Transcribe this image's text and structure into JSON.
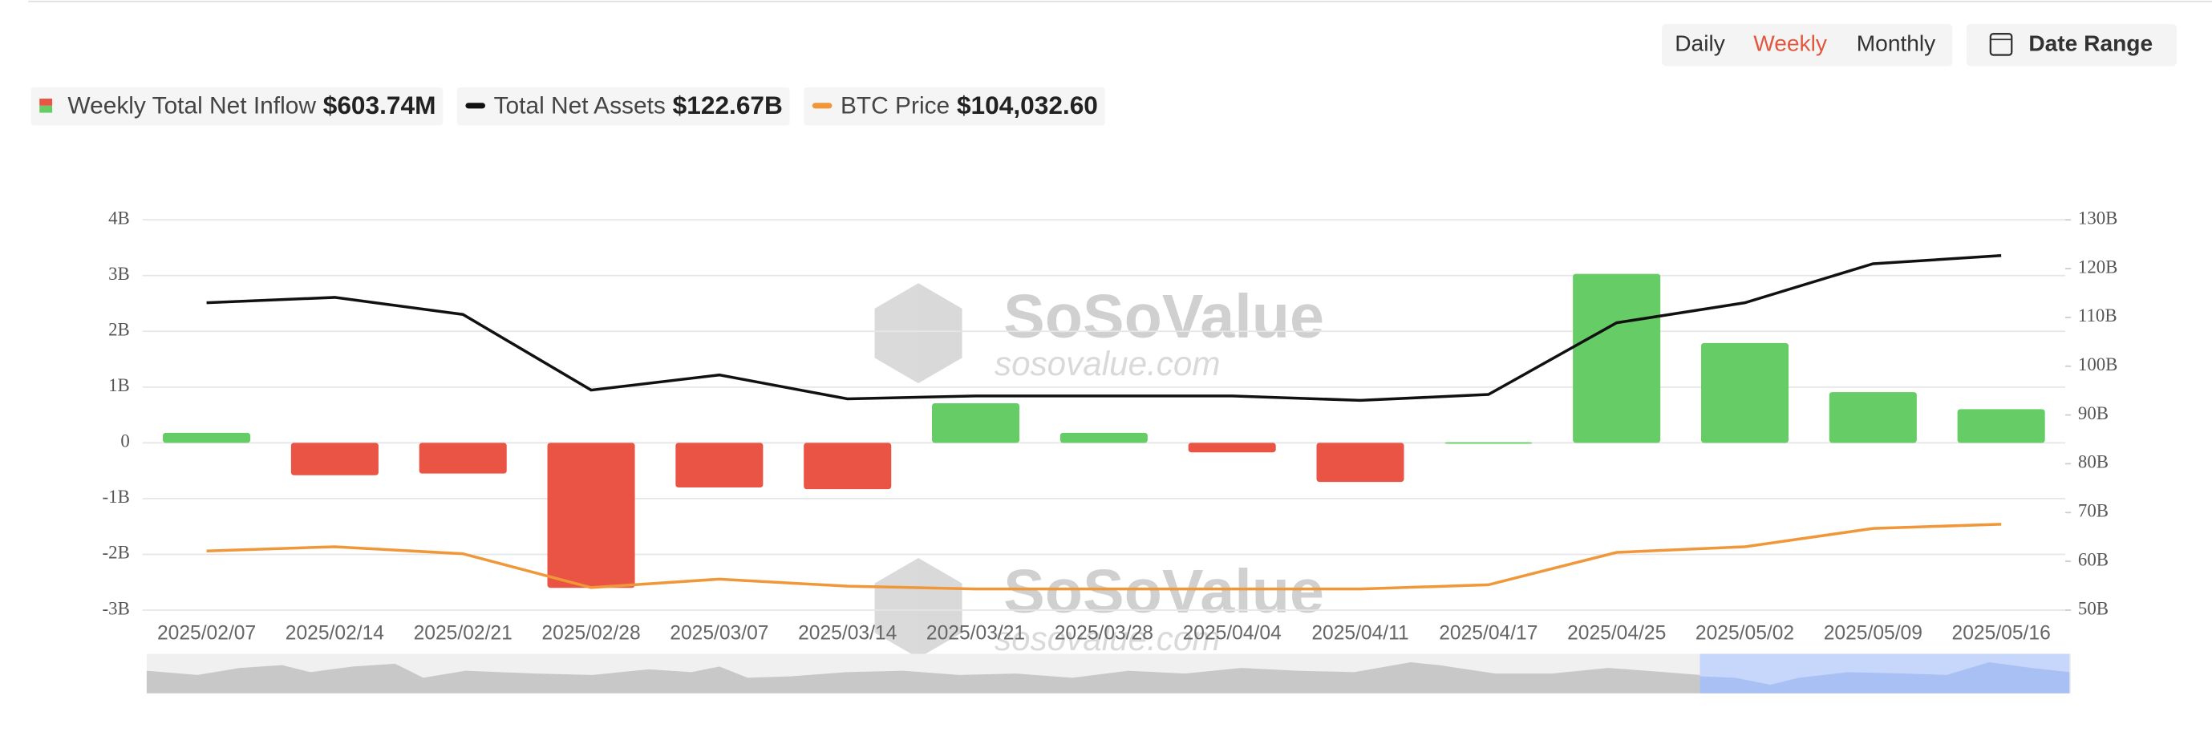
{
  "controls": {
    "periods": [
      "Daily",
      "Weekly",
      "Monthly"
    ],
    "active": 1,
    "date_range": "Date Range"
  },
  "watermark": {
    "brand": "SoSoValue",
    "site": "sosovalue.com"
  },
  "chart_data": {
    "type": "bar",
    "categories": [
      "2025/02/07",
      "2025/02/14",
      "2025/02/21",
      "2025/02/28",
      "2025/03/07",
      "2025/03/14",
      "2025/03/21",
      "2025/03/28",
      "2025/04/04",
      "2025/04/11",
      "2025/04/17",
      "2025/04/25",
      "2025/05/02",
      "2025/05/09",
      "2025/05/16"
    ],
    "series": [
      {
        "name": "Weekly Total Net Inflow",
        "type": "bar",
        "color": "#66cc66",
        "negative_color": "#ea5445",
        "latest_label": "$603.74M",
        "values": [
          0.18,
          -0.58,
          -0.55,
          -2.6,
          -0.8,
          -0.83,
          0.71,
          0.18,
          -0.17,
          -0.7,
          0.01,
          3.03,
          1.79,
          0.91,
          0.60374
        ]
      },
      {
        "name": "Total Net Assets",
        "type": "line",
        "axis": "y2",
        "color": "#111111",
        "latest_label": "$122.67B",
        "values": [
          113.0,
          114.1,
          110.6,
          95.1,
          98.2,
          93.3,
          93.9,
          93.9,
          93.9,
          93.0,
          94.2,
          108.9,
          113.0,
          121.0,
          122.67
        ]
      },
      {
        "name": "BTC Price",
        "type": "line",
        "axis": "y3",
        "color": "#f0973a",
        "latest_label": "$104,032.60",
        "values": [
          95770,
          97070,
          94900,
          84460,
          87070,
          84900,
          84030,
          84030,
          84030,
          84030,
          85330,
          95330,
          97070,
          102720,
          104032.6
        ]
      }
    ],
    "ylim": [
      -3,
      4
    ],
    "yticks": [
      {
        "value": 4,
        "label": "4B"
      },
      {
        "value": 3,
        "label": "3B"
      },
      {
        "value": 2,
        "label": "2B"
      },
      {
        "value": 1,
        "label": "1B"
      },
      0,
      {
        "value": -1,
        "label": "-1B"
      },
      {
        "value": -2,
        "label": "-2B"
      },
      {
        "value": -3,
        "label": "-3B"
      }
    ],
    "y2lim": [
      50,
      130
    ],
    "y2ticks": [
      {
        "value": 130,
        "label": "130B"
      },
      {
        "value": 120,
        "label": "120B"
      },
      {
        "value": 110,
        "label": "110B"
      },
      {
        "value": 100,
        "label": "100B"
      },
      {
        "value": 90,
        "label": "90B"
      },
      {
        "value": 80,
        "label": "80B"
      },
      {
        "value": 70,
        "label": "70B"
      },
      {
        "value": 60,
        "label": "60B"
      },
      {
        "value": 50,
        "label": "50B"
      }
    ],
    "y3lim": [
      77500,
      198000
    ],
    "grid": true
  }
}
